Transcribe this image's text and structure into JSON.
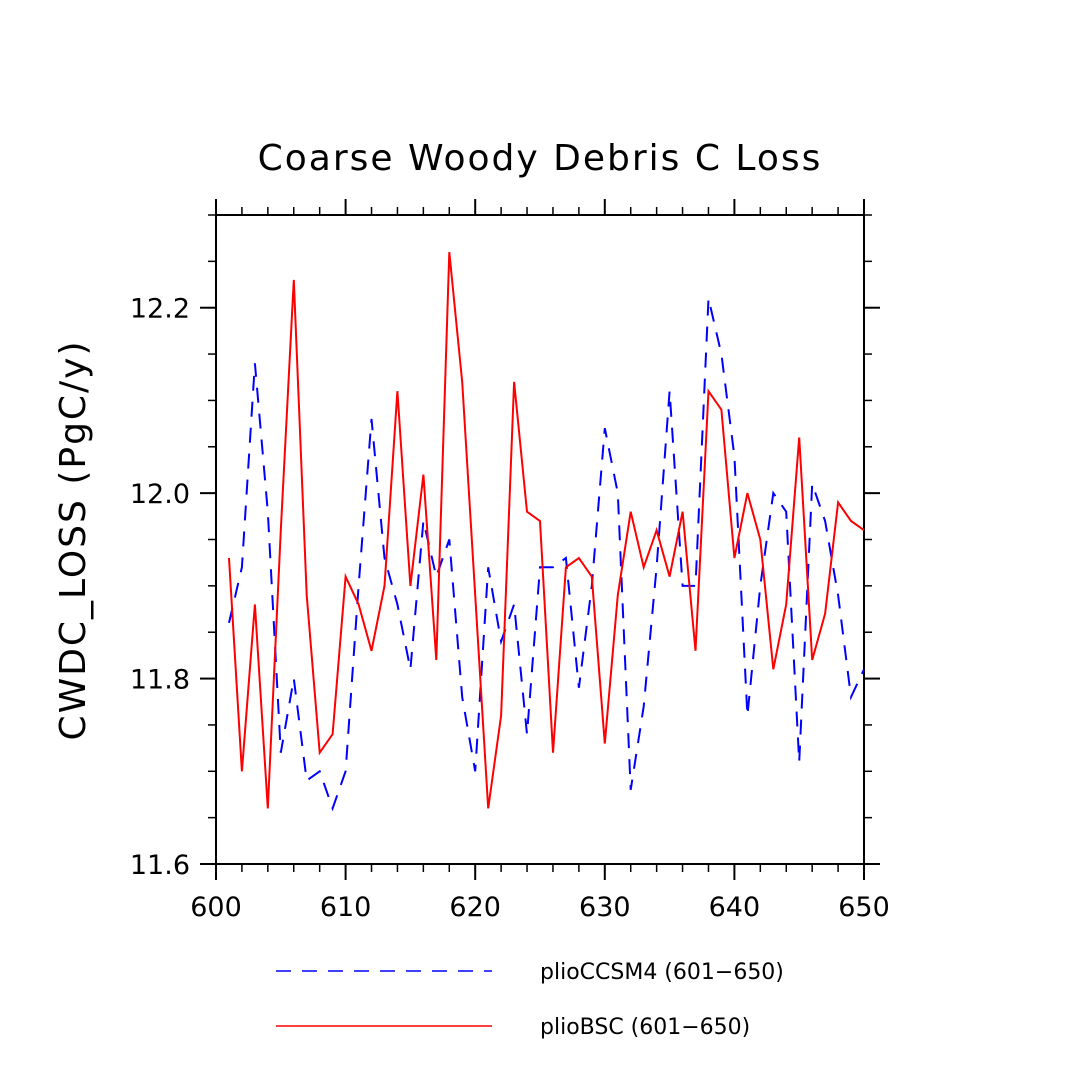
{
  "chart_data": {
    "type": "line",
    "title": "Coarse Woody Debris C Loss",
    "xlabel": "",
    "ylabel": "CWDC_LOSS  (PgC/y)",
    "xlim": [
      600,
      650
    ],
    "ylim": [
      11.6,
      12.3
    ],
    "x_ticks": [
      "600",
      "610",
      "620",
      "630",
      "640",
      "650"
    ],
    "y_ticks": [
      "11.6",
      "11.8",
      "12.0",
      "12.2"
    ],
    "grid": false,
    "legend_position": "bottom",
    "x": [
      601,
      602,
      603,
      604,
      605,
      606,
      607,
      608,
      609,
      610,
      611,
      612,
      613,
      614,
      615,
      616,
      617,
      618,
      619,
      620,
      621,
      622,
      623,
      624,
      625,
      626,
      627,
      628,
      629,
      630,
      631,
      632,
      633,
      634,
      635,
      636,
      637,
      638,
      639,
      640,
      641,
      642,
      643,
      644,
      645,
      646,
      647,
      648,
      649,
      650
    ],
    "series": [
      {
        "name": "plioCCSM4 (601−650)",
        "color": "#0000ff",
        "dash": "dashed",
        "values": [
          11.86,
          11.92,
          12.14,
          11.98,
          11.72,
          11.8,
          11.69,
          11.7,
          11.66,
          11.7,
          11.9,
          12.08,
          11.93,
          11.88,
          11.81,
          11.97,
          11.91,
          11.95,
          11.78,
          11.7,
          11.92,
          11.84,
          11.88,
          11.74,
          11.92,
          11.92,
          11.93,
          11.79,
          11.9,
          12.07,
          12.0,
          11.68,
          11.77,
          11.92,
          12.11,
          11.9,
          11.9,
          12.21,
          12.15,
          12.04,
          11.76,
          11.9,
          12.0,
          11.98,
          11.71,
          12.01,
          11.97,
          11.89,
          11.78,
          11.81
        ]
      },
      {
        "name": "plioBSC (601−650)",
        "color": "#ff0000",
        "dash": "solid",
        "values": [
          11.93,
          11.7,
          11.88,
          11.66,
          11.96,
          12.23,
          11.89,
          11.72,
          11.74,
          11.91,
          11.88,
          11.83,
          11.9,
          12.11,
          11.9,
          12.02,
          11.82,
          12.26,
          12.12,
          11.89,
          11.66,
          11.76,
          12.12,
          11.98,
          11.97,
          11.72,
          11.92,
          11.93,
          11.91,
          11.73,
          11.89,
          11.98,
          11.92,
          11.96,
          11.91,
          11.98,
          11.83,
          12.11,
          12.09,
          11.93,
          12.0,
          11.95,
          11.81,
          11.88,
          12.06,
          11.82,
          11.87,
          11.99,
          11.97,
          11.96
        ]
      }
    ]
  }
}
